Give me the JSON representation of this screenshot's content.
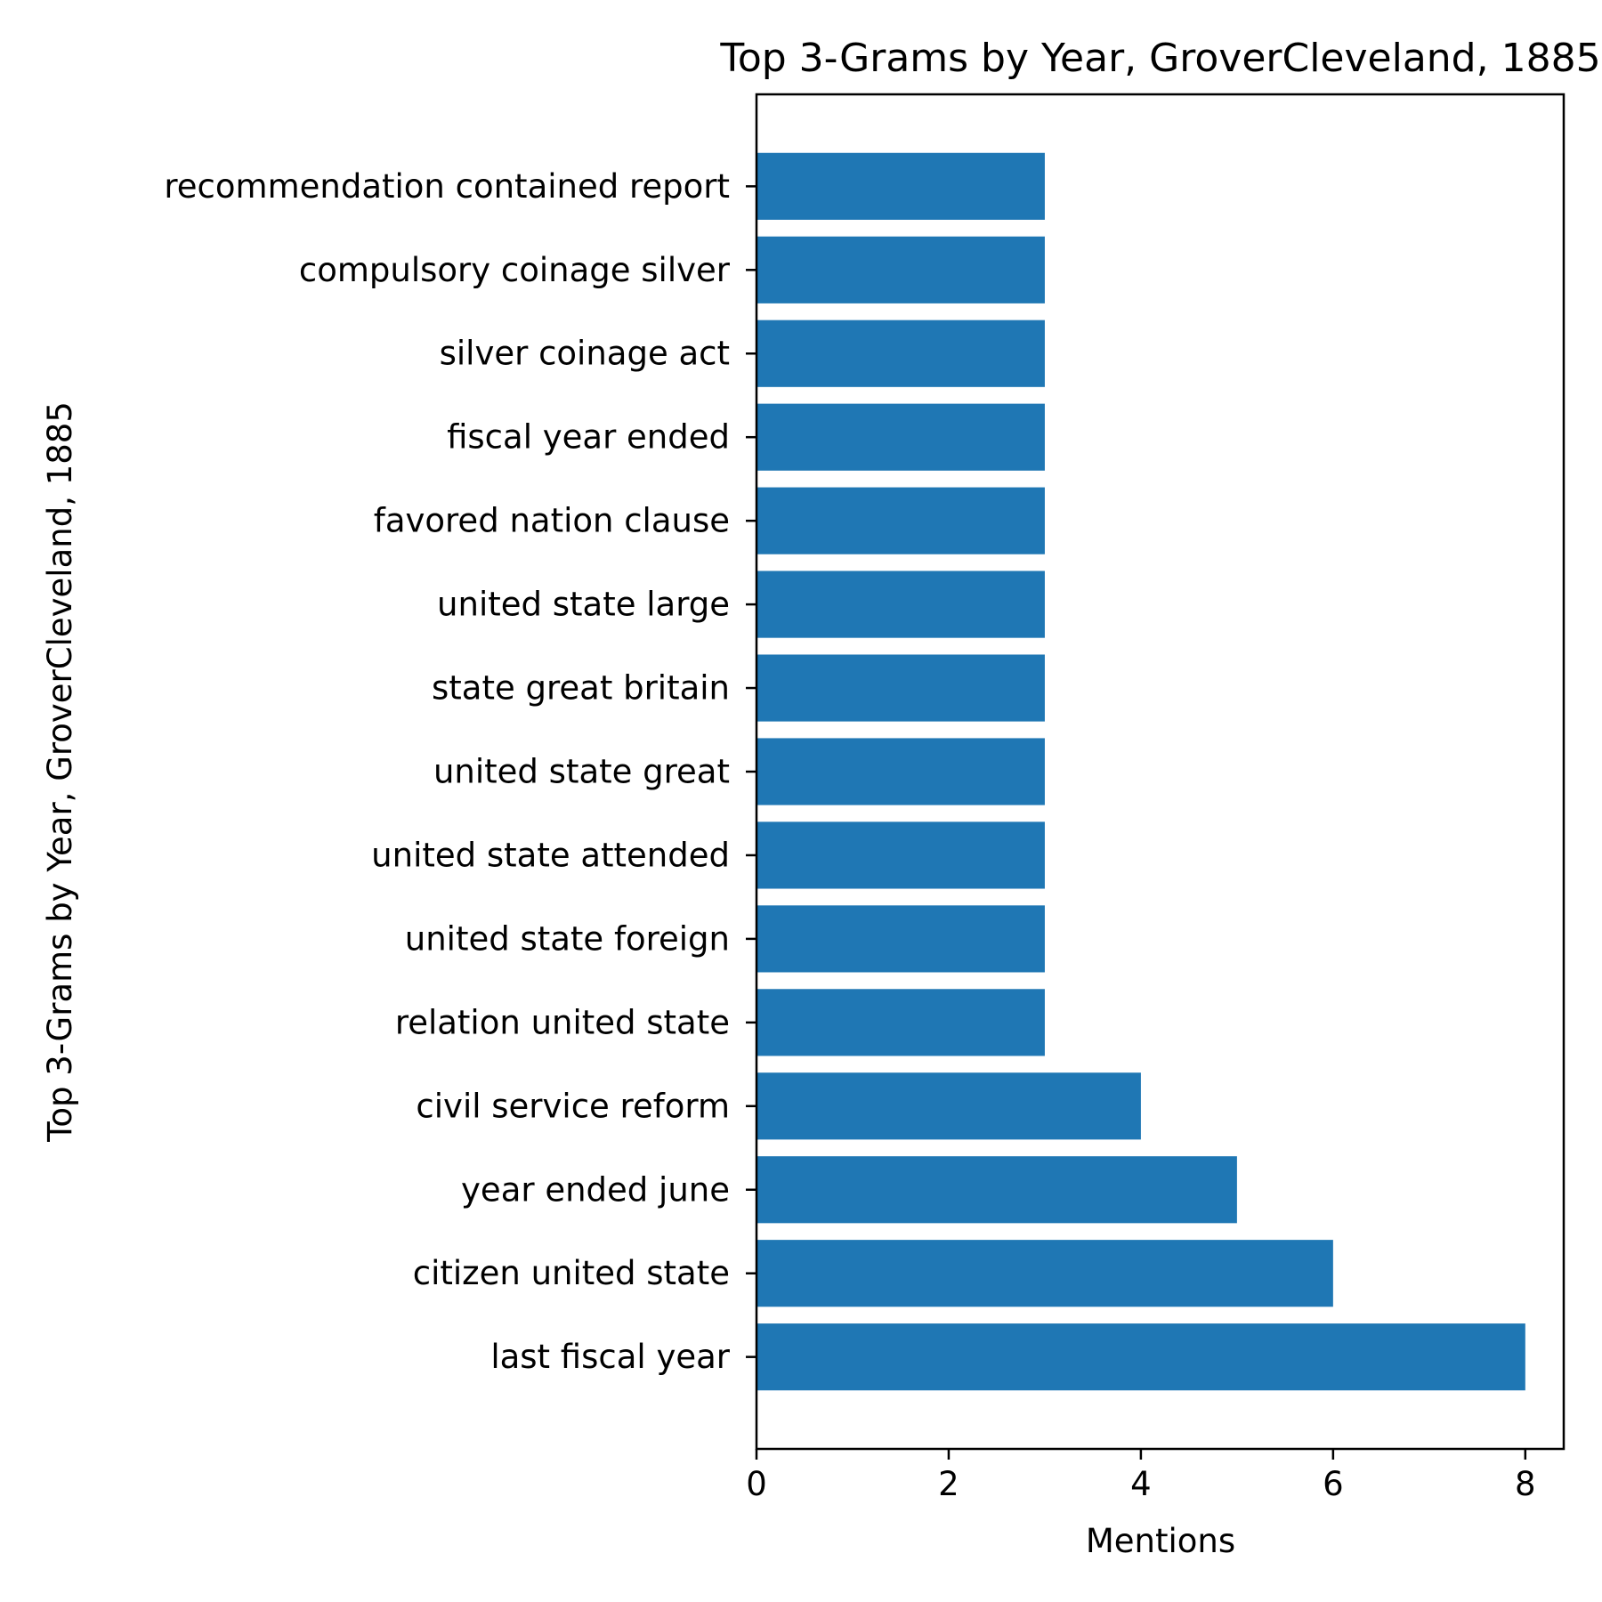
{
  "chart_data": {
    "type": "bar",
    "orientation": "horizontal",
    "title": "Top 3-Grams by Year, GroverCleveland, 1885",
    "xlabel": "Mentions",
    "ylabel": "Top 3-Grams by Year, GroverCleveland, 1885",
    "xlim": [
      0,
      8.4
    ],
    "xticks": [
      0,
      2,
      4,
      6,
      8
    ],
    "grid": false,
    "legend": null,
    "bar_color": "#1f77b4",
    "categories": [
      "last fiscal year",
      "citizen united state",
      "year ended june",
      "civil service reform",
      "relation united state",
      "united state foreign",
      "united state attended",
      "united state great",
      "state great britain",
      "united state large",
      "favored nation clause",
      "fiscal year ended",
      "silver coinage act",
      "compulsory coinage silver",
      "recommendation contained report"
    ],
    "values": [
      8,
      6,
      5,
      4,
      3,
      3,
      3,
      3,
      3,
      3,
      3,
      3,
      3,
      3,
      3
    ]
  }
}
